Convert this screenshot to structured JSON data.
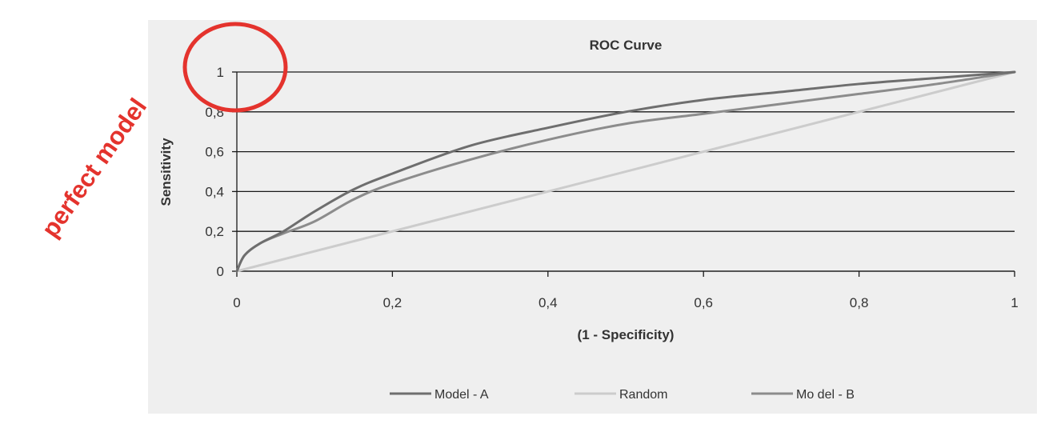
{
  "annotation": {
    "text": "perfect model",
    "color": "#e4332d"
  },
  "chart_data": {
    "type": "line",
    "title": "ROC Curve",
    "xlabel": "(1 - Specificity)",
    "ylabel": "Sensitivity",
    "xlim": [
      0,
      1
    ],
    "ylim": [
      0,
      1
    ],
    "x_ticks": [
      0,
      0.2,
      0.4,
      0.6,
      0.8,
      1
    ],
    "x_tick_labels": [
      "0",
      "0,2",
      "0,4",
      "0,6",
      "0,8",
      "1"
    ],
    "y_ticks": [
      0,
      0.2,
      0.4,
      0.6,
      0.8,
      1
    ],
    "y_tick_labels": [
      "0",
      "0,2",
      "0,4",
      "0,6",
      "0,8",
      "1"
    ],
    "grid": "horizontal",
    "legend_position": "bottom",
    "series": [
      {
        "name": "Model - A",
        "legend_label": "Model - A",
        "color": "#6e6e6e",
        "x": [
          0,
          0.01,
          0.03,
          0.06,
          0.1,
          0.15,
          0.2,
          0.3,
          0.4,
          0.5,
          0.6,
          0.7,
          0.8,
          0.9,
          1.0
        ],
        "y": [
          0,
          0.08,
          0.14,
          0.2,
          0.3,
          0.41,
          0.49,
          0.63,
          0.72,
          0.8,
          0.86,
          0.9,
          0.94,
          0.97,
          1.0
        ]
      },
      {
        "name": "Random",
        "legend_label": "Random",
        "color": "#cccccc",
        "x": [
          0,
          1
        ],
        "y": [
          0,
          1
        ]
      },
      {
        "name": "Model - B",
        "legend_label": "Mo del - B",
        "color": "#8c8c8c",
        "x": [
          0,
          0.01,
          0.03,
          0.06,
          0.1,
          0.15,
          0.2,
          0.3,
          0.4,
          0.5,
          0.6,
          0.7,
          0.8,
          0.9,
          1.0
        ],
        "y": [
          0,
          0.08,
          0.14,
          0.19,
          0.25,
          0.36,
          0.44,
          0.56,
          0.66,
          0.74,
          0.79,
          0.84,
          0.89,
          0.94,
          1.0
        ]
      }
    ]
  }
}
